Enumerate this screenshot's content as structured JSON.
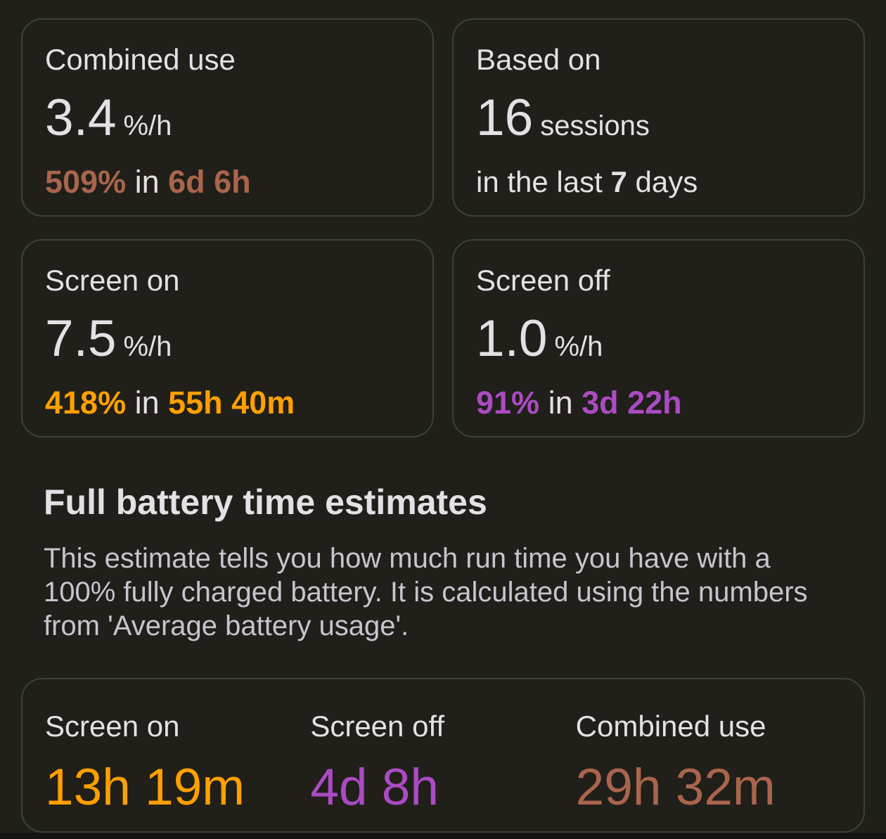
{
  "theme": {
    "page_bg": "#201f1a",
    "card_bg": "#201f1a",
    "card_border": "#3f4037",
    "text_primary": "#e5e0e4",
    "text_muted": "#c9c4cd",
    "accent_orange": "#ffa000",
    "accent_purple": "#ab4bc3",
    "accent_brown": "#a9654c",
    "bottom_strip": "#141410"
  },
  "stats_grid": {
    "cards": [
      {
        "title": "Combined use",
        "value": "3.4",
        "unit": "%/h",
        "detail_amount": "509%",
        "detail_connector": " in ",
        "detail_duration": "6d 6h"
      },
      {
        "title": "Based on",
        "value": "16",
        "unit": "sessions",
        "line2_prefix": "in the last ",
        "line2_bold": "7",
        "line2_suffix": " days"
      },
      {
        "title": "Screen on",
        "value": "7.5",
        "unit": "%/h",
        "detail_amount": "418%",
        "detail_connector": " in ",
        "detail_duration": "55h 40m"
      },
      {
        "title": "Screen off",
        "value": "1.0",
        "unit": "%/h",
        "detail_amount": "91%",
        "detail_connector": " in ",
        "detail_duration": "3d 22h"
      }
    ]
  },
  "estimates": {
    "heading": "Full battery time estimates",
    "description": "This estimate tells you how much run time you have with a 100% fully charged battery. It is calculated using the numbers from 'Average battery usage'.",
    "columns": [
      {
        "label": "Screen on",
        "value": "13h 19m"
      },
      {
        "label": "Screen off",
        "value": "4d 8h"
      },
      {
        "label": "Combined use",
        "value": "29h 32m"
      }
    ]
  }
}
